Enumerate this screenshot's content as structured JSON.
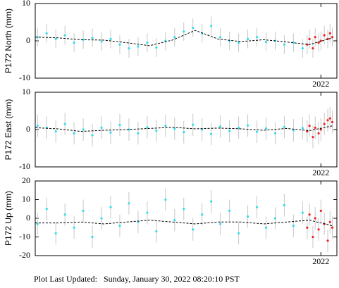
{
  "chart_data": [
    {
      "type": "scatter",
      "ylabel": "P172 North (mm)",
      "ylim": [
        -10,
        10
      ],
      "yticks": [
        -10,
        0,
        10
      ],
      "xlim": [
        2019.5,
        2022.14
      ],
      "xticks": [
        2022
      ],
      "series": [
        {
          "mode": "markers",
          "color": "#33ddee",
          "error": 2.5,
          "x": [
            2019.52,
            2019.6,
            2019.68,
            2019.76,
            2019.84,
            2019.92,
            2020.0,
            2020.08,
            2020.16,
            2020.24,
            2020.32,
            2020.4,
            2020.48,
            2020.56,
            2020.64,
            2020.72,
            2020.8,
            2020.88,
            2020.96,
            2021.04,
            2021.12,
            2021.2,
            2021.28,
            2021.36,
            2021.44,
            2021.52,
            2021.6,
            2021.68,
            2021.76,
            2021.84
          ],
          "values": [
            1,
            2,
            0.5,
            1.5,
            -0.5,
            0.3,
            0.8,
            -0.2,
            0.5,
            -1,
            -2,
            -1.5,
            -0.5,
            -1.8,
            0,
            1,
            2.5,
            3.5,
            2,
            4,
            1,
            0,
            -0.5,
            0.5,
            1,
            -0.3,
            0,
            -1,
            -0.5,
            -2
          ]
        },
        {
          "mode": "markers",
          "color": "#ee2222",
          "error": 2.5,
          "x": [
            2021.88,
            2021.9,
            2021.93,
            2021.95,
            2021.98,
            2022.0,
            2022.03,
            2022.06,
            2022.08,
            2022.1
          ],
          "values": [
            -1,
            0.5,
            -2,
            1,
            -0.5,
            0,
            1.5,
            0.5,
            2,
            1
          ]
        },
        {
          "mode": "line",
          "color": "#000000",
          "x": [
            2019.5,
            2019.7,
            2019.9,
            2020.1,
            2020.3,
            2020.5,
            2020.7,
            2020.9,
            2021.1,
            2021.3,
            2021.5,
            2021.7,
            2021.9,
            2022.1
          ],
          "values": [
            1,
            0.8,
            0.3,
            0.2,
            -0.5,
            -1.3,
            0.2,
            2.8,
            0.5,
            -0.2,
            0.3,
            -0.3,
            -1,
            0.8
          ]
        }
      ]
    },
    {
      "type": "scatter",
      "ylabel": "P172 East (mm)",
      "ylim": [
        -10,
        10
      ],
      "yticks": [
        -10,
        0,
        10
      ],
      "xlim": [
        2019.5,
        2022.14
      ],
      "xticks": [
        2022
      ],
      "series": [
        {
          "mode": "markers",
          "color": "#33ddee",
          "error": 3,
          "x": [
            2019.52,
            2019.6,
            2019.68,
            2019.76,
            2019.84,
            2019.92,
            2020.0,
            2020.08,
            2020.16,
            2020.24,
            2020.32,
            2020.4,
            2020.48,
            2020.56,
            2020.64,
            2020.72,
            2020.8,
            2020.88,
            2020.96,
            2021.04,
            2021.12,
            2021.2,
            2021.28,
            2021.36,
            2021.44,
            2021.52,
            2021.6,
            2021.68,
            2021.76,
            2021.84
          ],
          "values": [
            1,
            0.5,
            -0.5,
            1.5,
            -1,
            0,
            -1.5,
            0.5,
            -0.8,
            1.2,
            0,
            -1,
            0.6,
            -0.3,
            1,
            0.2,
            -0.7,
            1.3,
            0,
            -1.2,
            0.8,
            -0.4,
            0.5,
            1.1,
            -0.6,
            0.3,
            -1,
            0.7,
            -0.2,
            0.4
          ]
        },
        {
          "mode": "markers",
          "color": "#ee2222",
          "error": 3,
          "x": [
            2021.88,
            2021.9,
            2021.93,
            2021.95,
            2021.98,
            2022.0,
            2022.03,
            2022.06,
            2022.08,
            2022.1
          ],
          "values": [
            -0.5,
            1,
            -2,
            0.5,
            -1,
            0,
            1.5,
            2.5,
            3,
            2
          ]
        },
        {
          "mode": "line",
          "color": "#000000",
          "x": [
            2019.5,
            2019.7,
            2019.9,
            2020.1,
            2020.3,
            2020.5,
            2020.7,
            2020.9,
            2021.1,
            2021.3,
            2021.5,
            2021.7,
            2021.9,
            2022.1
          ],
          "values": [
            0.5,
            0.2,
            -0.5,
            -0.2,
            0,
            0.3,
            0.6,
            0.2,
            0.4,
            0.2,
            -0.2,
            0.3,
            -0.3,
            1
          ]
        }
      ]
    },
    {
      "type": "scatter",
      "ylabel": "P172 Up (mm)",
      "ylim": [
        -20,
        20
      ],
      "yticks": [
        -20,
        -10,
        0,
        10,
        20
      ],
      "xlim": [
        2019.5,
        2022.14
      ],
      "xticks": [
        2022
      ],
      "series": [
        {
          "mode": "markers",
          "color": "#33ddee",
          "error": 6,
          "x": [
            2019.52,
            2019.6,
            2019.68,
            2019.76,
            2019.84,
            2019.92,
            2020.0,
            2020.08,
            2020.16,
            2020.24,
            2020.32,
            2020.4,
            2020.48,
            2020.56,
            2020.64,
            2020.72,
            2020.8,
            2020.88,
            2020.96,
            2021.04,
            2021.12,
            2021.2,
            2021.28,
            2021.36,
            2021.44,
            2021.52,
            2021.6,
            2021.68,
            2021.76,
            2021.84
          ],
          "values": [
            -3,
            5,
            -8,
            2,
            -5,
            4,
            -10,
            0,
            6,
            -4,
            8,
            -2,
            3,
            -7,
            10,
            -1,
            5,
            -6,
            2,
            9,
            -3,
            4,
            -8,
            1,
            6,
            -5,
            0,
            7,
            -4,
            3
          ]
        },
        {
          "mode": "markers",
          "color": "#ee2222",
          "error": 6,
          "x": [
            2021.88,
            2021.9,
            2021.93,
            2021.95,
            2021.98,
            2022.0,
            2022.03,
            2022.06,
            2022.08,
            2022.1
          ],
          "values": [
            -5,
            2,
            -10,
            0,
            -6,
            4,
            -3,
            -12,
            -2,
            -5
          ]
        },
        {
          "mode": "line",
          "color": "#000000",
          "x": [
            2019.5,
            2019.7,
            2019.9,
            2020.1,
            2020.3,
            2020.5,
            2020.7,
            2020.9,
            2021.1,
            2021.3,
            2021.5,
            2021.7,
            2021.9,
            2022.1
          ],
          "values": [
            -2.5,
            -2.5,
            -2,
            -3,
            -2,
            -1,
            -2,
            -3,
            -2,
            -2,
            -3,
            -2,
            -1,
            -4
          ]
        }
      ]
    }
  ],
  "footer": "Plot Last Updated:   Sunday, January 30, 2022 08:20:10 PST"
}
